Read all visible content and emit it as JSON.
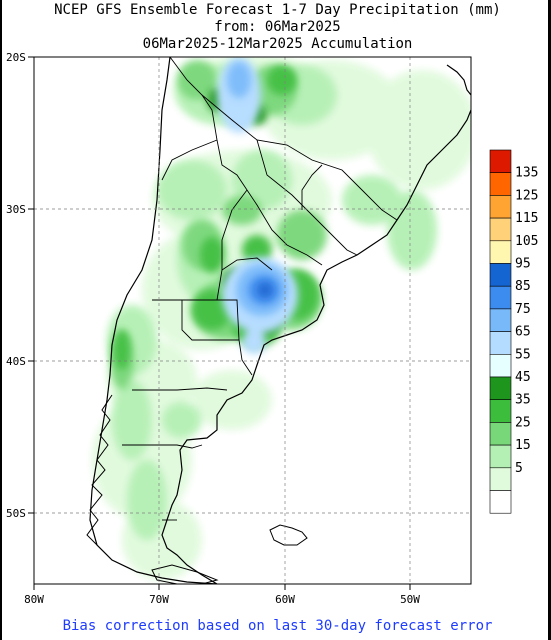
{
  "title": {
    "line1": "NCEP GFS Ensemble Forecast 1-7 Day Precipitation (mm)",
    "line2": "from: 06Mar2025",
    "line3": "06Mar2025-12Mar2025 Accumulation"
  },
  "footer": "Bias correction based on last 30-day forecast error",
  "map": {
    "lat_labels": [
      "20S",
      "30S",
      "40S",
      "50S"
    ],
    "lon_labels": [
      "80W",
      "70W",
      "60W",
      "50W"
    ],
    "land_color": "#ffffff",
    "coast_color": "#000000",
    "grid_color": "#7f7f7f"
  },
  "legend": {
    "units": "mm",
    "bins": [
      {
        "label": "135",
        "color": "#dd1a00"
      },
      {
        "label": "125",
        "color": "#ff6600"
      },
      {
        "label": "115",
        "color": "#ffa333"
      },
      {
        "label": "105",
        "color": "#ffd27a"
      },
      {
        "label": "95",
        "color": "#fff6b0"
      },
      {
        "label": "85",
        "color": "#1464d2"
      },
      {
        "label": "75",
        "color": "#3c8cf0"
      },
      {
        "label": "65",
        "color": "#78b9fa"
      },
      {
        "label": "55",
        "color": "#b4dcff"
      },
      {
        "label": "45",
        "color": "#e6ffff"
      },
      {
        "label": "35",
        "color": "#1e961e"
      },
      {
        "label": "25",
        "color": "#3cbe3c"
      },
      {
        "label": "15",
        "color": "#78d778"
      },
      {
        "label": "5",
        "color": "#b4f0b4"
      },
      {
        "label": "",
        "color": "#e0fadc"
      },
      {
        "label": "",
        "color": "#ffffff"
      }
    ]
  }
}
